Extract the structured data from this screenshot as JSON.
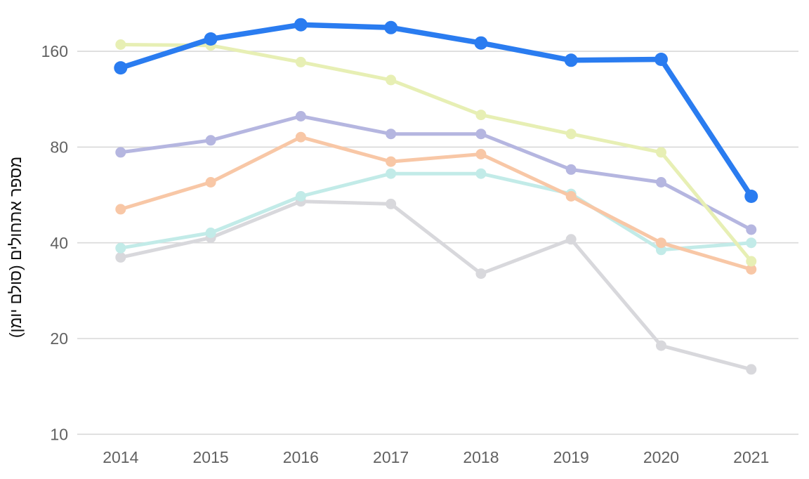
{
  "chart_data": {
    "type": "line",
    "title": "",
    "xlabel": "",
    "ylabel": "מספר אתחולים (סולם יומן)",
    "yscale": "log2",
    "ylim": [
      10,
      230
    ],
    "yticks": [
      160,
      80,
      40,
      20,
      10
    ],
    "grid": true,
    "legend": "none",
    "categories": [
      "2014",
      "2015",
      "2016",
      "2017",
      "2018",
      "2019",
      "2020",
      "2021"
    ],
    "series": [
      {
        "name": "series-gray",
        "color": "#D8D8DC",
        "line_width": 5,
        "marker_radius": 7.5,
        "values": [
          36,
          41.5,
          54,
          53,
          32,
          41,
          19,
          16
        ]
      },
      {
        "name": "series-aqua",
        "color": "#C2EBE8",
        "line_width": 5,
        "marker_radius": 7.5,
        "values": [
          38.5,
          43,
          56,
          66,
          66,
          57,
          38,
          40
        ]
      },
      {
        "name": "series-peach",
        "color": "#F8C7A6",
        "line_width": 5,
        "marker_radius": 7.5,
        "values": [
          51,
          62,
          86,
          72,
          76,
          56,
          40,
          33
        ]
      },
      {
        "name": "series-lavender",
        "color": "#B5B6E0",
        "line_width": 5,
        "marker_radius": 7.5,
        "values": [
          77,
          84,
          100,
          88,
          88,
          68,
          62,
          44
        ]
      },
      {
        "name": "series-lime",
        "color": "#E7EFB4",
        "line_width": 5,
        "marker_radius": 7.5,
        "values": [
          168,
          167,
          148,
          130,
          101,
          88,
          77,
          35
        ]
      },
      {
        "name": "series-blue-highlight",
        "color": "#2A7CF0",
        "line_width": 7.5,
        "marker_radius": 9.5,
        "values": [
          142,
          175,
          194,
          190,
          170,
          150,
          151,
          56
        ]
      }
    ]
  },
  "colors": {
    "grid": "#D9D9D9",
    "tick_text": "#616161",
    "axis_title_text": "#0F0F0F",
    "background": "#FFFFFF"
  }
}
